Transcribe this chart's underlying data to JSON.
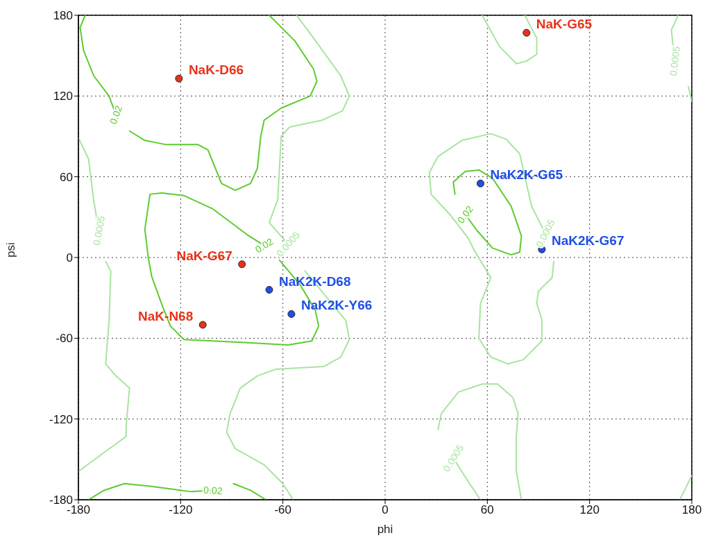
{
  "chart_data": {
    "type": "scatter",
    "xlabel": "phi",
    "ylabel": "psi",
    "xlim": [
      -180,
      180
    ],
    "ylim": [
      -180,
      180
    ],
    "xticks": [
      -180,
      -120,
      -60,
      0,
      60,
      120,
      180
    ],
    "yticks": [
      -180,
      -120,
      -60,
      0,
      60,
      120,
      180
    ],
    "grid": true,
    "line_style": "solid",
    "series": [
      {
        "type": "line",
        "color": "#5ccc2e",
        "x": [
          -68,
          -53,
          -42,
          -40,
          -44,
          -61,
          -71,
          -73,
          -75,
          -79,
          -88,
          -96,
          -104,
          -110,
          -129,
          -141,
          -150
        ],
        "values": [
          180,
          161,
          140,
          131,
          120,
          111,
          102,
          90,
          66,
          55,
          50,
          55,
          80,
          84,
          84,
          87,
          94
        ]
      },
      {
        "type": "line",
        "color": "#5ccc2e",
        "x": [
          -158,
          -162,
          -171,
          -177,
          -179,
          -176
        ],
        "values": [
          106,
          120,
          135,
          154,
          171,
          180
        ]
      },
      {
        "type": "line",
        "color": "#5ccc2e",
        "x": [
          -62,
          -50,
          -41,
          -39,
          -43,
          -57,
          -84,
          -118,
          -126,
          -131,
          -137,
          -139,
          -141,
          -138,
          -131,
          -118,
          -101,
          -81,
          -71
        ],
        "values": [
          -2,
          -20,
          -39,
          -51,
          -62,
          -65,
          -63,
          -61,
          -51,
          -35,
          -14,
          0,
          21,
          47,
          48,
          46,
          36,
          17,
          9
        ]
      },
      {
        "type": "line",
        "color": "#5ccc2e",
        "x": [
          41,
          40,
          47,
          55,
          63,
          74,
          80,
          79,
          74,
          63,
          54,
          47
        ],
        "values": [
          47,
          56,
          64,
          65,
          59,
          38,
          16,
          4,
          2,
          7,
          20,
          32
        ]
      },
      {
        "type": "line",
        "color": "#5ccc2e",
        "x": [
          -174,
          -165,
          -153,
          -138,
          -114,
          -101
        ],
        "values": [
          -180,
          -173,
          -168,
          -170,
          -174,
          -173
        ]
      },
      {
        "type": "line",
        "color": "#5ccc2e",
        "x": [
          -89,
          -79,
          -70
        ],
        "values": [
          -168,
          -173,
          -180
        ]
      },
      {
        "type": "line",
        "color": "#a8e4a0",
        "x": [
          -52,
          -42,
          -26,
          -21,
          -25,
          -37,
          -56,
          -61,
          -62,
          -63,
          -68,
          -57
        ],
        "values": [
          180,
          163,
          135,
          120,
          109,
          102,
          97,
          90,
          66,
          43,
          26,
          10
        ]
      },
      {
        "type": "line",
        "color": "#a8e4a0",
        "x": [
          -47,
          -34,
          -23,
          -21,
          -26,
          -36,
          -64,
          -75,
          -85,
          -91,
          -93,
          -88,
          -71,
          -60,
          -54
        ],
        "values": [
          -10,
          -30,
          -47,
          -61,
          -74,
          -81,
          -83,
          -88,
          -97,
          -116,
          -130,
          -142,
          -154,
          -168,
          -180
        ]
      },
      {
        "type": "line",
        "color": "#a8e4a0",
        "x": [
          -180,
          -174,
          -171,
          -168
        ],
        "values": [
          89,
          73,
          42,
          20
        ]
      },
      {
        "type": "line",
        "color": "#a8e4a0",
        "x": [
          -164,
          -161,
          -162,
          -164,
          -158,
          -150,
          -152,
          -152,
          -164,
          -180
        ],
        "values": [
          -3,
          -10,
          -47,
          -79,
          -88,
          -97,
          -125,
          -133,
          -144,
          -159
        ]
      },
      {
        "type": "line",
        "color": "#a8e4a0",
        "x": [
          57,
          67,
          77,
          83,
          89,
          89,
          82
        ],
        "values": [
          180,
          157,
          144,
          146,
          151,
          163,
          180
        ]
      },
      {
        "type": "line",
        "color": "#a8e4a0",
        "x": [
          172,
          168,
          170
        ],
        "values": [
          180,
          169,
          146
        ]
      },
      {
        "type": "line",
        "color": "#a8e4a0",
        "x": [
          178,
          180
        ],
        "values": [
          127,
          116
        ]
      },
      {
        "type": "line",
        "color": "#a8e4a0",
        "x": [
          94,
          86,
          79,
          71,
          62,
          45,
          31,
          26,
          27,
          38,
          49,
          52,
          62,
          56,
          55,
          62,
          72,
          81,
          92,
          92,
          89,
          90,
          98,
          99
        ],
        "values": [
          18,
          38,
          77,
          88,
          92,
          87,
          75,
          63,
          47,
          32,
          14,
          6,
          -15,
          -34,
          -60,
          -74,
          -79,
          -76,
          -62,
          -46,
          -34,
          -25,
          -15,
          -3
        ]
      },
      {
        "type": "line",
        "color": "#a8e4a0",
        "x": [
          31,
          33,
          43,
          57,
          66,
          75,
          78,
          77,
          77,
          80
        ],
        "values": [
          -128,
          -116,
          -100,
          -94,
          -94,
          -104,
          -116,
          -133,
          -159,
          -180
        ]
      },
      {
        "type": "line",
        "color": "#a8e4a0",
        "x": [
          40,
          49,
          56
        ],
        "values": [
          -149,
          -167,
          -180
        ]
      },
      {
        "type": "line",
        "color": "#a8e4a0",
        "x": [
          173,
          180
        ],
        "values": [
          -180,
          -162
        ]
      },
      {
        "name": "NaK-D66",
        "color": "#e8321a",
        "marker": "circle",
        "x": [
          -121
        ],
        "values": [
          133
        ]
      },
      {
        "name": "NaK-G65",
        "color": "#e8321a",
        "marker": "circle",
        "x": [
          83
        ],
        "values": [
          167
        ]
      },
      {
        "name": "NaK2K-G65",
        "color": "#1f4fe6",
        "marker": "circle",
        "x": [
          56
        ],
        "values": [
          55
        ]
      },
      {
        "name": "NaK2K-G67",
        "color": "#1f4fe6",
        "marker": "circle",
        "x": [
          92
        ],
        "values": [
          6
        ]
      },
      {
        "name": "NaK-G67",
        "color": "#e8321a",
        "marker": "circle",
        "x": [
          -84
        ],
        "values": [
          -5
        ]
      },
      {
        "name": "NaK2K-D68",
        "color": "#1f4fe6",
        "marker": "circle",
        "x": [
          -68
        ],
        "values": [
          -24
        ]
      },
      {
        "name": "NaK2K-Y66",
        "color": "#1f4fe6",
        "marker": "circle",
        "x": [
          -55
        ],
        "values": [
          -42
        ]
      },
      {
        "name": "NaK-N68",
        "color": "#e8321a",
        "marker": "circle",
        "x": [
          -107
        ],
        "values": [
          -50
        ]
      }
    ],
    "annotations": [
      {
        "text": "0.02",
        "x": -158,
        "y": 106
      },
      {
        "text": "0.02",
        "x": -71,
        "y": 9
      },
      {
        "text": "0.02",
        "x": 47,
        "y": 32
      },
      {
        "text": "0.02",
        "x": -101,
        "y": -173
      },
      {
        "text": "0.0005",
        "x": -168,
        "y": 20
      },
      {
        "text": "0.0005",
        "x": -57,
        "y": 10
      },
      {
        "text": "0.0005",
        "x": 94,
        "y": 18
      },
      {
        "text": "0.0005",
        "x": 170,
        "y": 146
      },
      {
        "text": "0.0005",
        "x": 40,
        "y": -149
      }
    ]
  }
}
